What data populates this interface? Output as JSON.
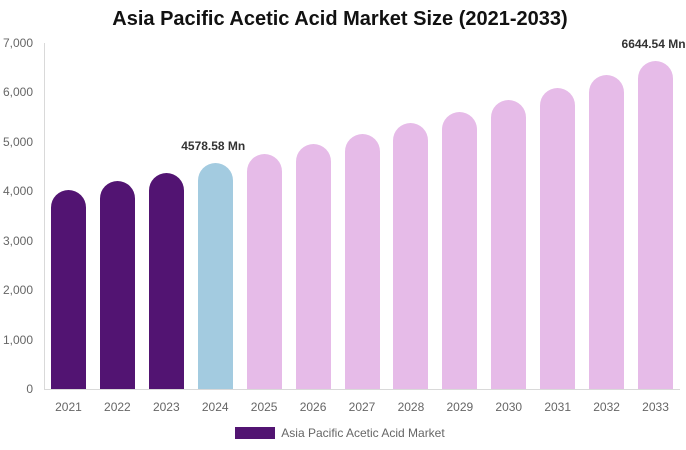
{
  "chart_data": {
    "type": "bar",
    "title": "Asia Pacific Acetic Acid Market Size (2021-2033)",
    "xlabel": "",
    "ylabel": "",
    "ylim": [
      0,
      7000
    ],
    "yticks": [
      "0",
      "1,000",
      "2,000",
      "3,000",
      "4,000",
      "5,000",
      "6,000",
      "7,000"
    ],
    "categories": [
      "2021",
      "2022",
      "2023",
      "2024",
      "2025",
      "2026",
      "2027",
      "2028",
      "2029",
      "2030",
      "2031",
      "2032",
      "2033"
    ],
    "series": [
      {
        "name": "Asia Pacific Acetic Acid Market",
        "values": [
          4030,
          4210,
          4370,
          4578.58,
          4760,
          4960,
          5160,
          5380,
          5610,
          5850,
          6090,
          6360,
          6644.54
        ]
      }
    ],
    "bar_colors": [
      "#521472",
      "#521472",
      "#521472",
      "#a3cbe0",
      "#e6bbe8",
      "#e6bbe8",
      "#e6bbe8",
      "#e6bbe8",
      "#e6bbe8",
      "#e6bbe8",
      "#e6bbe8",
      "#e6bbe8",
      "#e6bbe8"
    ],
    "annotations": [
      {
        "category": "2024",
        "text": "4578.58 Mn"
      },
      {
        "category": "2033",
        "text": "6644.54 Mn"
      }
    ],
    "legend": {
      "position": "bottom",
      "label": "Asia Pacific Acetic Acid Market",
      "color": "#521472"
    },
    "grid": false
  }
}
